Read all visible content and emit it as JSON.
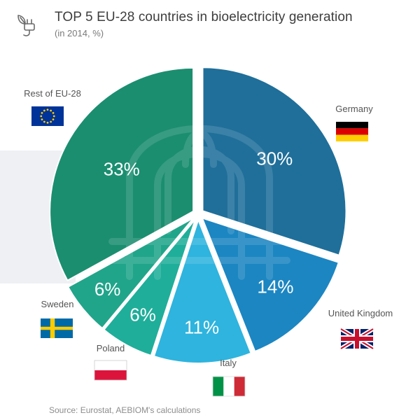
{
  "header": {
    "title": "TOP 5 EU-28 countries in bioelectricity generation",
    "subtitle": "(in 2014, %)",
    "icon": "plug-leaf-icon"
  },
  "source": "Source: Eurostat, AEBIOM's calculations",
  "chart_data": {
    "type": "pie",
    "title": "TOP 5 EU-28 countries in bioelectricity generation",
    "subtitle": "(in 2014, %)",
    "unit": "%",
    "slices": [
      {
        "name": "Germany",
        "value": 30,
        "label": "30%",
        "color": "#1f6f9a",
        "flag": "germany"
      },
      {
        "name": "United Kingdom",
        "value": 14,
        "label": "14%",
        "color": "#1c86c2",
        "flag": "united-kingdom"
      },
      {
        "name": "Italy",
        "value": 11,
        "label": "11%",
        "color": "#2eb4de",
        "flag": "italy"
      },
      {
        "name": "Poland",
        "value": 6,
        "label": "6%",
        "color": "#1fae9a",
        "flag": "poland"
      },
      {
        "name": "Sweden",
        "value": 6,
        "label": "6%",
        "color": "#21a58a",
        "flag": "sweden"
      },
      {
        "name": "Rest of EU-28",
        "value": 33,
        "label": "33%",
        "color": "#1b8e70",
        "flag": "european-union"
      }
    ]
  }
}
